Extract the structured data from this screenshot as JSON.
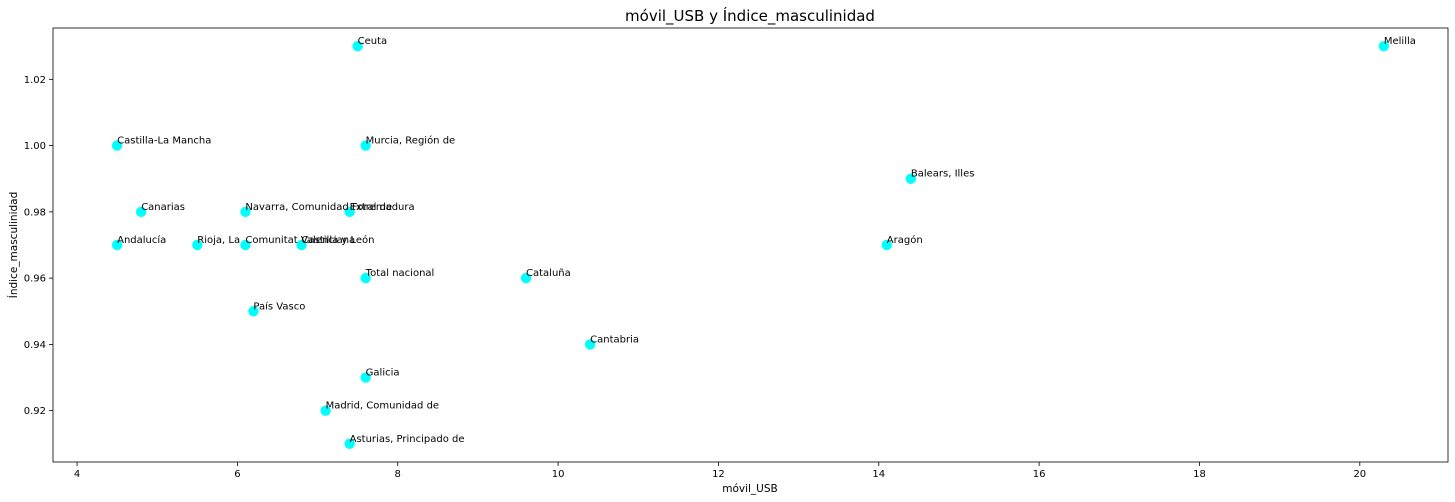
{
  "chart_data": {
    "type": "scatter",
    "title": "móvil_USB y Índice_masculinidad",
    "xlabel": "móvil_USB",
    "ylabel": "Índice_masculinidad",
    "xlim": [
      3.7,
      21.1
    ],
    "ylim": [
      0.9045,
      1.0355
    ],
    "xticks": [
      4,
      6,
      8,
      10,
      12,
      14,
      16,
      18,
      20
    ],
    "xtick_labels": [
      "4",
      "6",
      "8",
      "10",
      "12",
      "14",
      "16",
      "18",
      "20"
    ],
    "yticks": [
      0.92,
      0.94,
      0.96,
      0.98,
      1.0,
      1.02
    ],
    "ytick_labels": [
      "0.92",
      "0.94",
      "0.96",
      "0.98",
      "1.00",
      "1.02"
    ],
    "grid": false,
    "marker_color": "#00ffff",
    "points": [
      {
        "label": "Ceuta",
        "x": 7.5,
        "y": 1.03
      },
      {
        "label": "Melilla",
        "x": 20.3,
        "y": 1.03
      },
      {
        "label": "Castilla-La Mancha",
        "x": 4.5,
        "y": 1.0
      },
      {
        "label": "Murcia, Región de",
        "x": 7.6,
        "y": 1.0
      },
      {
        "label": "Balears, Illes",
        "x": 14.4,
        "y": 0.99
      },
      {
        "label": "Canarias",
        "x": 4.8,
        "y": 0.98
      },
      {
        "label": "Navarra, Comunidad Foral de",
        "x": 6.1,
        "y": 0.98
      },
      {
        "label": "Extremadura",
        "x": 7.4,
        "y": 0.98
      },
      {
        "label": "Andalucía",
        "x": 4.5,
        "y": 0.97
      },
      {
        "label": "Rioja, La",
        "x": 5.5,
        "y": 0.97
      },
      {
        "label": "Comunitat Valenciana",
        "x": 6.1,
        "y": 0.97
      },
      {
        "label": "Castilla y León",
        "x": 6.8,
        "y": 0.97
      },
      {
        "label": "Aragón",
        "x": 14.1,
        "y": 0.97
      },
      {
        "label": "Total nacional",
        "x": 7.6,
        "y": 0.96
      },
      {
        "label": "Cataluña",
        "x": 9.6,
        "y": 0.96
      },
      {
        "label": "País Vasco",
        "x": 6.2,
        "y": 0.95
      },
      {
        "label": "Cantabria",
        "x": 10.4,
        "y": 0.94
      },
      {
        "label": "Galicia",
        "x": 7.6,
        "y": 0.93
      },
      {
        "label": "Madrid, Comunidad de",
        "x": 7.1,
        "y": 0.92
      },
      {
        "label": "Asturias, Principado de",
        "x": 7.4,
        "y": 0.91
      }
    ]
  }
}
